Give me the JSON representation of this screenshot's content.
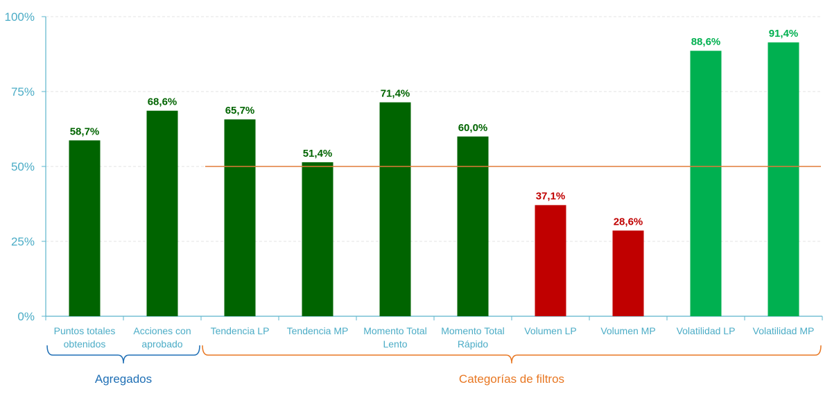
{
  "chart_data": {
    "type": "bar",
    "ylim": [
      0,
      100
    ],
    "yticks": [
      {
        "value": 0,
        "label": "0%"
      },
      {
        "value": 25,
        "label": "25%"
      },
      {
        "value": 50,
        "label": "50%"
      },
      {
        "value": 75,
        "label": "75%"
      },
      {
        "value": 100,
        "label": "100%"
      }
    ],
    "reference_line": 50,
    "grid": true,
    "categories": [
      [
        "Puntos totales",
        "obtenidos"
      ],
      [
        "Acciones con",
        "aprobado"
      ],
      [
        "Tendencia LP"
      ],
      [
        "Tendencia MP"
      ],
      [
        "Momento Total",
        "Lento"
      ],
      [
        "Momento Total",
        "Rápido"
      ],
      [
        "Volumen LP"
      ],
      [
        "Volumen MP"
      ],
      [
        "Volatilidad LP"
      ],
      [
        "Volatilidad MP"
      ]
    ],
    "values": [
      58.7,
      68.6,
      65.7,
      51.4,
      71.4,
      60.0,
      37.1,
      28.6,
      88.6,
      91.4
    ],
    "data_labels": [
      "58,7%",
      "68,6%",
      "65,7%",
      "51,4%",
      "71,4%",
      "60,0%",
      "37,1%",
      "28,6%",
      "88,6%",
      "91,4%"
    ],
    "bar_colors": [
      "#006400",
      "#006400",
      "#006400",
      "#006400",
      "#006400",
      "#006400",
      "#C00000",
      "#C00000",
      "#00B050",
      "#00B050"
    ],
    "groups": [
      {
        "label": "Agregados",
        "from": 0,
        "to": 1,
        "color": "#1F6FB5"
      },
      {
        "label": "Categorías de filtros",
        "from": 2,
        "to": 9,
        "color": "#E87722"
      }
    ]
  },
  "colors": {
    "axis": "#5BB5CC",
    "tick_text": "#4BACC6",
    "grid": "#E3E3E3",
    "reference_line": "#E07B39",
    "label_dark_green": "#006400",
    "label_red": "#C00000",
    "label_bright_green": "#00B050"
  }
}
